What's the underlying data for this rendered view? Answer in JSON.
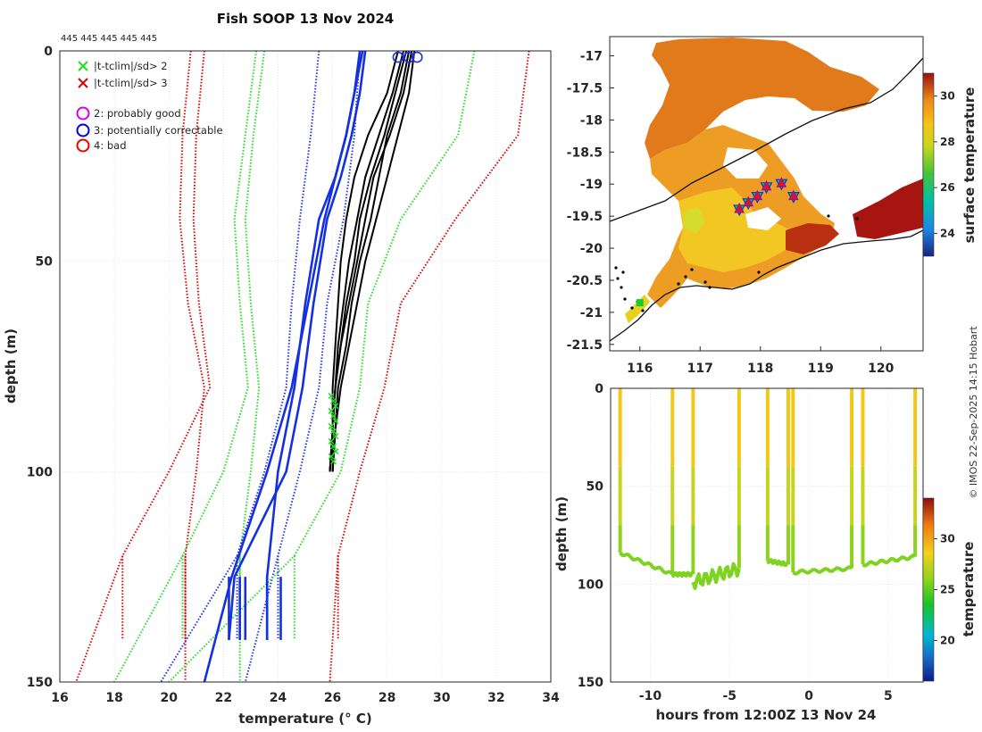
{
  "figure": {
    "title": "Fish SOOP 13 Nov 2024",
    "top_counts": "445 445 445 445 445",
    "credit": "© IMOS 22-Sep-2025 14:15 Hobart"
  },
  "chart_data": [
    {
      "type": "line",
      "name": "temperature-profiles",
      "xlabel": "temperature (° C)",
      "ylabel": "depth (m)",
      "xlim": [
        16,
        34
      ],
      "ylim": [
        150,
        0
      ],
      "xticks": [
        16,
        18,
        20,
        22,
        24,
        26,
        28,
        30,
        32,
        34
      ],
      "yticks": [
        0,
        50,
        100,
        150
      ],
      "legend": [
        {
          "symbol": "x",
          "color": "#22dd22",
          "label": "|t-tclim|/sd> 2"
        },
        {
          "symbol": "x",
          "color": "#dd0000",
          "label": "|t-tclim|/sd> 3"
        },
        {
          "symbol": "o",
          "color": "#dd00dd",
          "label": "2: probably good"
        },
        {
          "symbol": "o",
          "color": "#0000dd",
          "label": "3: potentially correctable"
        },
        {
          "symbol": "o",
          "color": "#ee0000",
          "label": "4: bad"
        }
      ],
      "climatology_envelopes": [
        {
          "name": "clim ±3sd low",
          "color": "#dd0000",
          "style": "dotted",
          "depth": [
            0,
            20,
            40,
            60,
            80,
            100,
            120,
            150
          ],
          "temp": [
            20.8,
            20.5,
            20.4,
            20.7,
            21.3,
            21.0,
            20.6,
            20.6
          ]
        },
        {
          "name": "clim ±3sd low outer",
          "color": "#dd0000",
          "style": "dotted",
          "depth": [
            0,
            20,
            40,
            60,
            80,
            100,
            120,
            150
          ],
          "temp": [
            21.3,
            21.0,
            20.9,
            21.1,
            21.5,
            20.0,
            18.3,
            16.6
          ]
        },
        {
          "name": "clim ±2sd low",
          "color": "#22dd22",
          "style": "dotted",
          "depth": [
            0,
            20,
            40,
            60,
            80,
            100,
            120,
            150
          ],
          "temp": [
            23.2,
            22.8,
            22.4,
            22.6,
            22.9,
            22.0,
            20.5,
            18.0
          ]
        },
        {
          "name": "clim ±2sd low inner",
          "color": "#22dd22",
          "style": "dotted",
          "depth": [
            0,
            20,
            40,
            60,
            80,
            100,
            120,
            150
          ],
          "temp": [
            23.5,
            23.1,
            22.8,
            23.0,
            23.3,
            23.0,
            22.6,
            22.6
          ]
        },
        {
          "name": "clim ±1sd low",
          "color": "#2233ee",
          "style": "dotted",
          "depth": [
            0,
            20,
            40,
            60,
            80,
            100,
            120,
            150
          ],
          "temp": [
            25.5,
            25.2,
            24.8,
            24.5,
            24.3,
            23.5,
            22.5,
            19.7
          ]
        },
        {
          "name": "clim ±1sd high",
          "color": "#2233ee",
          "style": "dotted",
          "depth": [
            0,
            20,
            40,
            60,
            80,
            100,
            120,
            150
          ],
          "temp": [
            27.0,
            26.8,
            26.4,
            25.8,
            25.5,
            24.8,
            24.0,
            22.8
          ]
        },
        {
          "name": "clim ±2sd high",
          "color": "#22dd22",
          "style": "dotted",
          "depth": [
            0,
            20,
            40,
            60,
            80,
            100,
            120,
            150
          ],
          "temp": [
            31.2,
            30.6,
            28.5,
            27.3,
            27.0,
            26.3,
            24.6,
            20.0
          ]
        },
        {
          "name": "clim ±3sd high",
          "color": "#dd0000",
          "style": "dotted",
          "depth": [
            0,
            20,
            40,
            60,
            80,
            100,
            120,
            150
          ],
          "temp": [
            33.2,
            32.8,
            30.5,
            28.5,
            27.9,
            27.0,
            26.2,
            25.9
          ]
        }
      ],
      "blue_profiles": [
        {
          "name": "profile A",
          "depth": [
            0,
            10,
            20,
            30,
            40,
            60,
            80,
            100,
            125,
            140
          ],
          "temp": [
            27.2,
            27.0,
            26.7,
            26.3,
            25.8,
            25.3,
            24.9,
            24.3,
            22.4,
            22.2
          ]
        },
        {
          "name": "profile B",
          "depth": [
            0,
            10,
            20,
            30,
            40,
            60,
            80,
            100,
            125,
            140
          ],
          "temp": [
            27.0,
            26.8,
            26.5,
            26.1,
            25.5,
            25.0,
            24.6,
            24.0,
            23.6,
            23.6
          ]
        },
        {
          "name": "profile C",
          "depth": [
            0,
            20,
            40,
            60,
            80,
            100,
            125,
            150
          ],
          "temp": [
            27.1,
            26.5,
            25.7,
            25.1,
            24.5,
            23.6,
            22.3,
            21.3
          ]
        }
      ],
      "black_profiles": [
        {
          "depth": [
            0,
            10,
            20,
            30,
            40,
            50,
            60,
            70,
            80,
            90,
            100
          ],
          "temp": [
            28.9,
            28.6,
            28.1,
            27.5,
            27.2,
            26.9,
            26.6,
            26.3,
            26.1,
            26.0,
            25.9
          ]
        },
        {
          "depth": [
            0,
            10,
            20,
            30,
            40,
            50,
            60,
            70,
            80,
            90,
            100
          ],
          "temp": [
            28.6,
            28.2,
            27.7,
            27.2,
            26.9,
            26.6,
            26.4,
            26.2,
            26.1,
            26.0,
            26.0
          ]
        },
        {
          "depth": [
            0,
            10,
            20,
            30,
            40,
            50,
            60,
            70,
            80,
            90,
            100
          ],
          "temp": [
            29.0,
            28.8,
            28.4,
            28.0,
            27.6,
            27.2,
            26.9,
            26.6,
            26.3,
            26.1,
            26.0
          ]
        },
        {
          "depth": [
            0,
            10,
            20,
            30,
            40,
            50,
            60,
            70,
            80,
            90,
            100
          ],
          "temp": [
            28.4,
            28.0,
            27.3,
            26.8,
            26.5,
            26.3,
            26.2,
            26.1,
            26.0,
            26.0,
            25.9
          ]
        },
        {
          "depth": [
            0,
            10,
            20,
            30,
            40,
            50,
            60,
            70,
            80,
            90,
            100
          ],
          "temp": [
            28.8,
            28.5,
            28.0,
            27.7,
            27.4,
            27.0,
            26.7,
            26.5,
            26.2,
            26.1,
            26.0
          ]
        },
        {
          "depth": [
            0,
            10,
            20,
            30,
            40,
            50,
            60,
            70,
            80,
            90,
            100
          ],
          "temp": [
            28.7,
            28.3,
            27.9,
            27.4,
            27.0,
            26.8,
            26.5,
            26.3,
            26.1,
            26.0,
            25.9
          ]
        }
      ]
    },
    {
      "type": "heatmap",
      "name": "sst-map",
      "colorbar_label": "surface temperature",
      "colorbar_ticks": [
        24,
        26,
        28,
        30
      ],
      "colorbar_range": [
        23,
        31
      ],
      "xticks": [
        116,
        117,
        118,
        119,
        120
      ],
      "yticks": [
        -17,
        -17.5,
        -18,
        -18.5,
        -19,
        -19.5,
        -20,
        -20.5,
        -21,
        -21.5
      ],
      "xlim": [
        115.5,
        120.7
      ],
      "ylim": [
        -21.6,
        -16.7
      ],
      "stations": [
        {
          "lon": 117.65,
          "lat": -19.4,
          "marker": "triangle"
        },
        {
          "lon": 117.8,
          "lat": -19.3,
          "marker": "triangle"
        },
        {
          "lon": 117.95,
          "lat": -19.2,
          "marker": "triangle"
        },
        {
          "lon": 118.1,
          "lat": -19.05,
          "marker": "triangle"
        },
        {
          "lon": 118.35,
          "lat": -19.0,
          "marker": "triangle"
        },
        {
          "lon": 118.55,
          "lat": -19.2,
          "marker": "triangle"
        },
        {
          "lon": 116.0,
          "lat": -20.85,
          "marker": "square"
        }
      ]
    },
    {
      "type": "scatter",
      "name": "depth-time",
      "xlabel": "hours from 12:00Z 13 Nov 24",
      "ylabel": "depth (m)",
      "colorbar_label": "temperature",
      "colorbar_ticks": [
        20,
        25,
        30
      ],
      "colorbar_range": [
        16,
        34
      ],
      "xticks": [
        -10,
        -5,
        0,
        5
      ],
      "yticks": [
        0,
        50,
        100,
        150
      ],
      "xlim": [
        -12.5,
        7.2
      ],
      "ylim": [
        150,
        0
      ],
      "casts": [
        {
          "t_start": -11.9,
          "t_end": -8.6,
          "bottom_start": 84,
          "bottom_end": 95
        },
        {
          "t_start": -8.6,
          "t_end": -7.3,
          "bottom_start": 95,
          "bottom_end": 95
        },
        {
          "t_start": -7.3,
          "t_end": -4.4,
          "bottom_start": 99,
          "bottom_end": 92
        },
        {
          "t_start": -2.6,
          "t_end": -1.3,
          "bottom_start": 88,
          "bottom_end": 90
        },
        {
          "t_start": -1.0,
          "t_end": 2.7,
          "bottom_start": 94,
          "bottom_end": 92
        },
        {
          "t_start": 3.4,
          "t_end": 6.7,
          "bottom_start": 90,
          "bottom_end": 86
        }
      ]
    }
  ]
}
